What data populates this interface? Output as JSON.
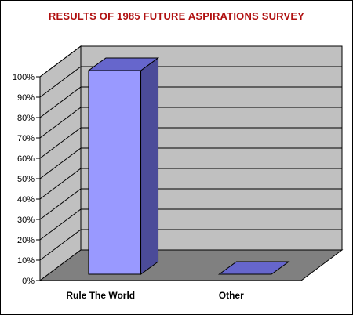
{
  "chart_data": {
    "type": "bar",
    "title": "RESULTS OF 1985 FUTURE ASPIRATIONS SURVEY",
    "categories": [
      "Rule The World",
      "Other"
    ],
    "values": [
      100,
      0
    ],
    "ylim": [
      0,
      100
    ],
    "y_ticks": [
      "0%",
      "10%",
      "20%",
      "30%",
      "40%",
      "50%",
      "60%",
      "70%",
      "80%",
      "90%",
      "100%"
    ],
    "xlabel": "",
    "ylabel": "",
    "grid": true,
    "style_3d": true,
    "colors": {
      "title": "#b01010",
      "bar_front": "#9999ff",
      "bar_top": "#6666cc",
      "bar_side": "#4b4b99",
      "wall": "#c0c0c0",
      "floor": "#808080"
    }
  }
}
